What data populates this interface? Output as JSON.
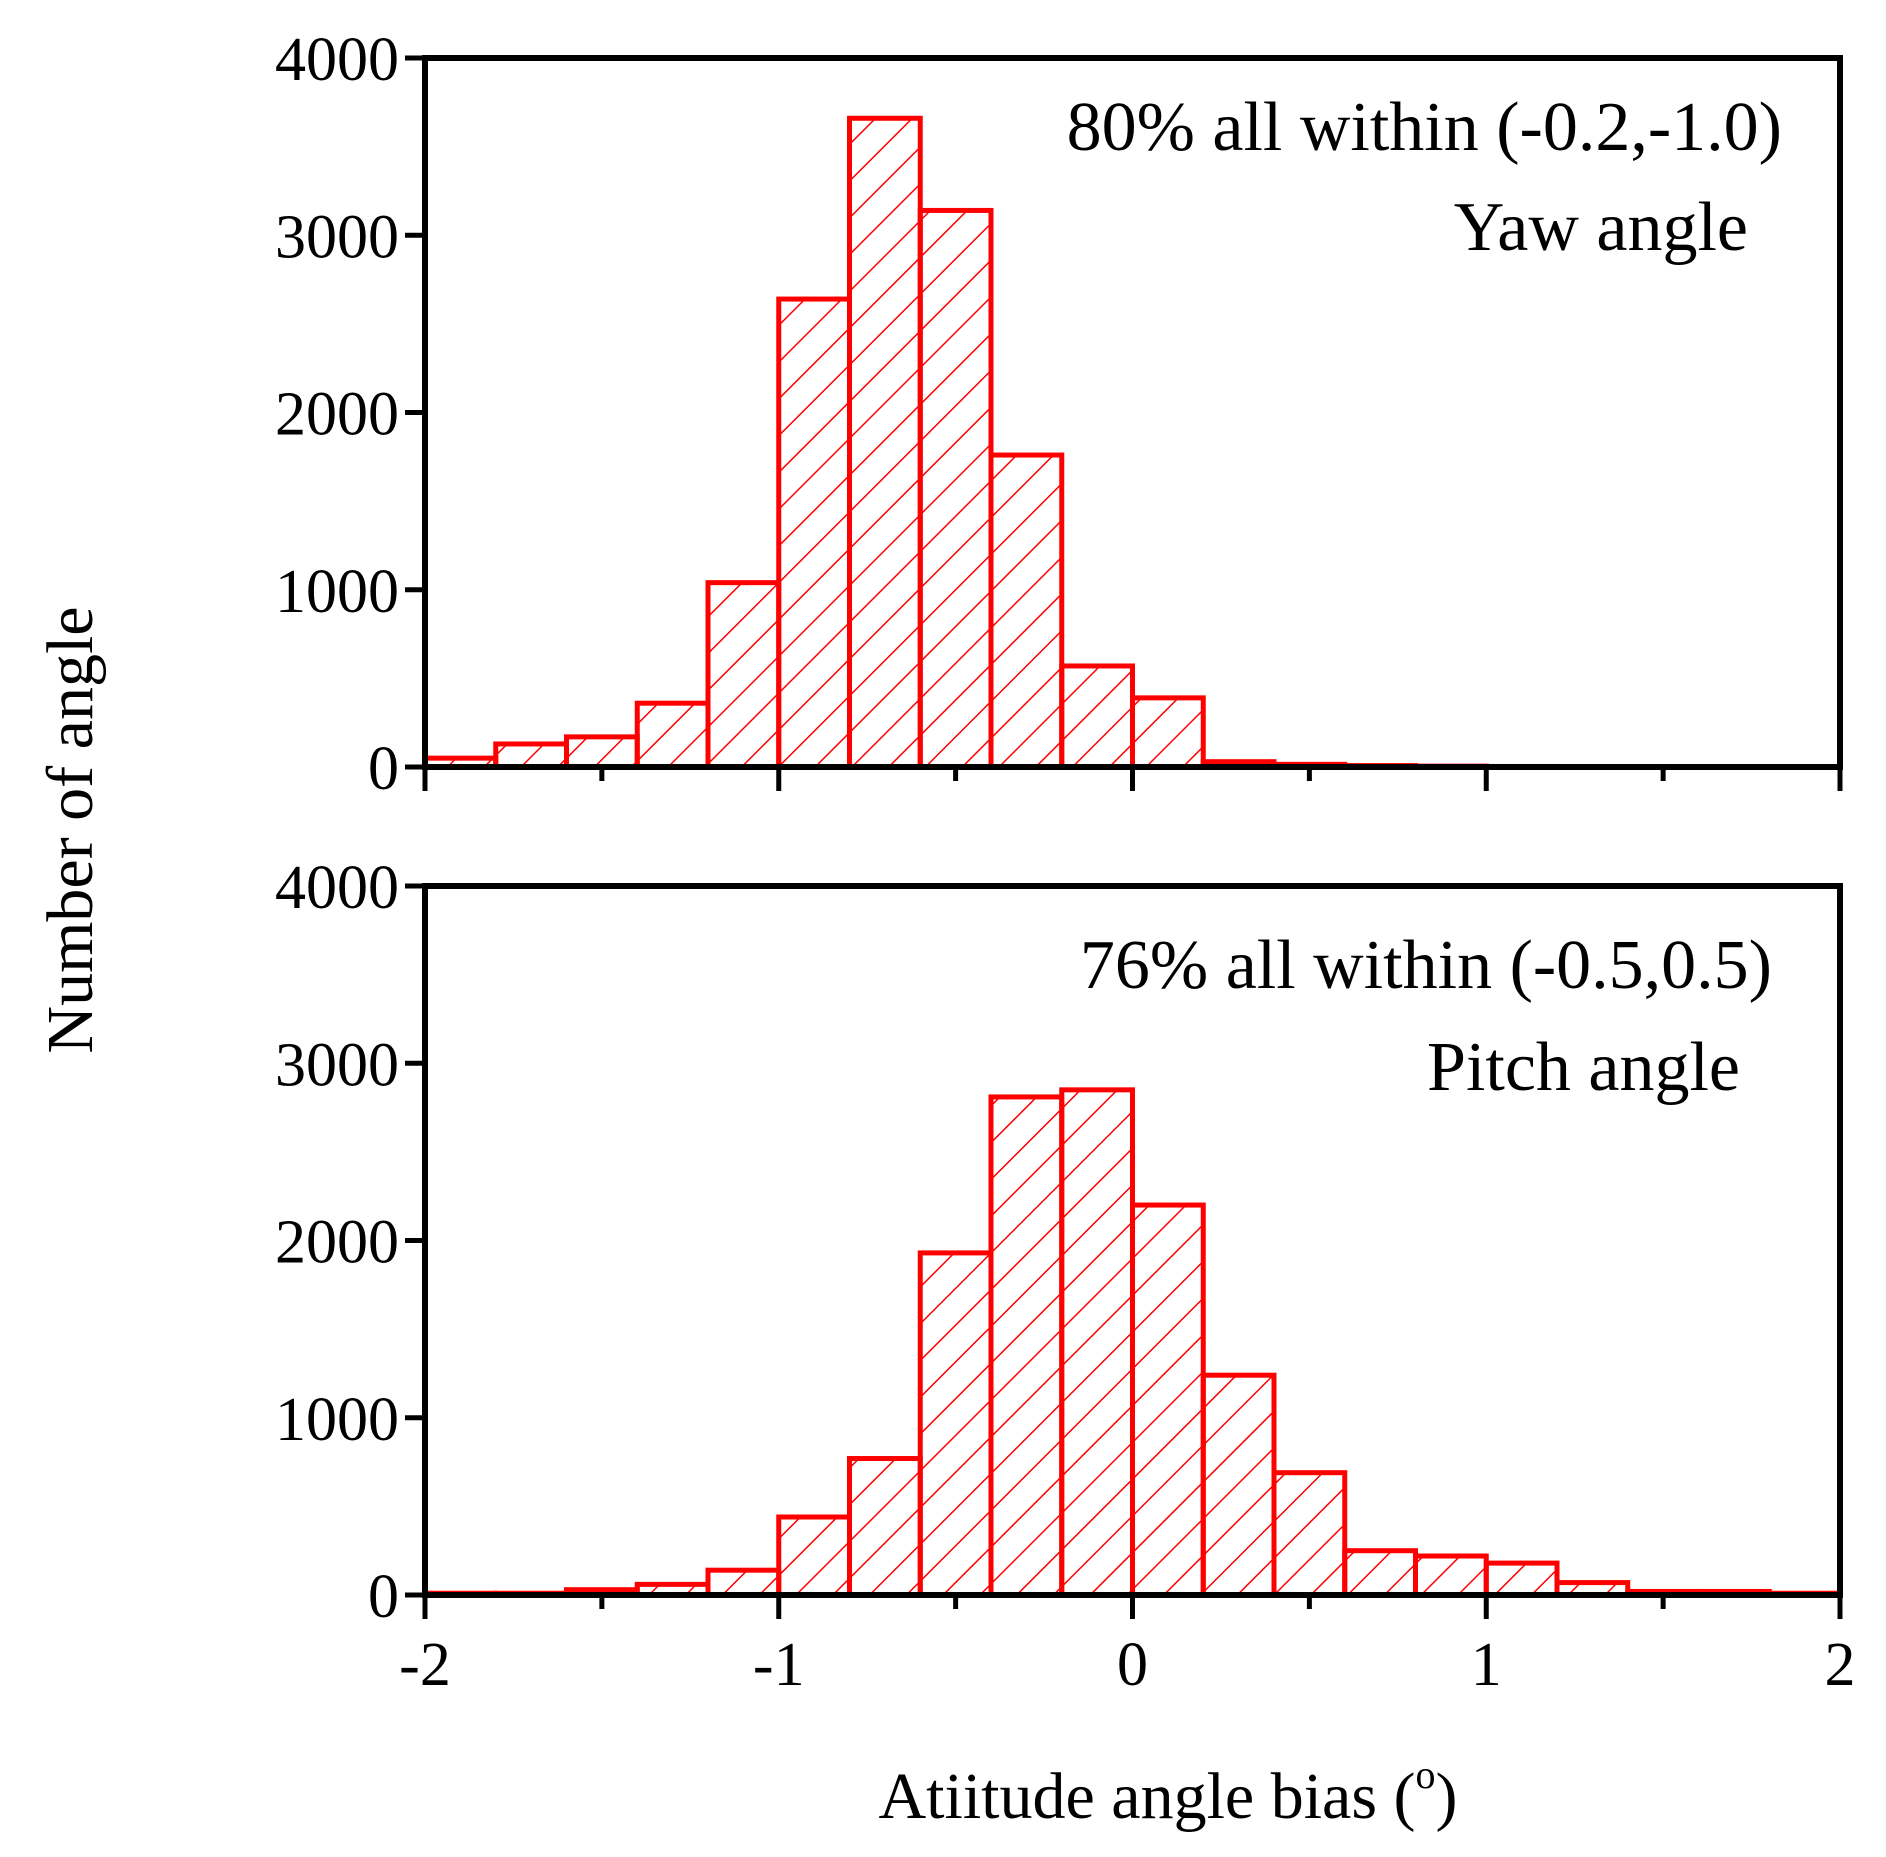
{
  "figure": {
    "ylabel": "Number of angle",
    "xlabel_main": "Atiitude angle bias (",
    "xlabel_sup": "o",
    "xlabel_end": ")"
  },
  "colors": {
    "bars": "#ff0000",
    "axes": "#000000",
    "background": "#ffffff"
  },
  "chart_data": [
    {
      "type": "bar",
      "panel": "top",
      "title": "Yaw angle",
      "annotation": "80% all within (-0.2,-1.0)",
      "bin_width": 0.2,
      "bin_left_edges": [
        -2.0,
        -1.8,
        -1.6,
        -1.4,
        -1.2,
        -1.0,
        -0.8,
        -0.6,
        -0.4,
        -0.2,
        0.0,
        0.2,
        0.4,
        0.6,
        0.8,
        1.0,
        1.2
      ],
      "values": [
        50,
        130,
        170,
        360,
        1040,
        2640,
        3660,
        3140,
        1760,
        570,
        390,
        30,
        15,
        8,
        5,
        3,
        2
      ],
      "xlim": [
        -2,
        2
      ],
      "ylim": [
        0,
        4000
      ],
      "xticks": [
        -2,
        -1,
        0,
        1,
        2
      ],
      "yticks": [
        0,
        1000,
        2000,
        3000,
        4000
      ],
      "ytick_labels": [
        "0",
        "1000",
        "2000",
        "3000",
        "4000"
      ],
      "fill": "diagonal hatch"
    },
    {
      "type": "bar",
      "panel": "bottom",
      "title": "Pitch angle",
      "annotation": "76% all within (-0.5,0.5)",
      "bin_width": 0.2,
      "bin_left_edges": [
        -2.0,
        -1.8,
        -1.6,
        -1.4,
        -1.2,
        -1.0,
        -0.8,
        -0.6,
        -0.4,
        -0.2,
        0.0,
        0.2,
        0.4,
        0.6,
        0.8,
        1.0,
        1.2,
        1.4,
        1.6,
        1.8
      ],
      "values": [
        10,
        10,
        30,
        60,
        140,
        440,
        770,
        1930,
        2810,
        2850,
        2200,
        1240,
        690,
        250,
        220,
        180,
        70,
        20,
        20,
        10
      ],
      "xlim": [
        -2,
        2
      ],
      "ylim": [
        0,
        4000
      ],
      "xticks": [
        -2,
        -1,
        0,
        1,
        2
      ],
      "xtick_labels": [
        "-2",
        "-1",
        "0",
        "1",
        "2"
      ],
      "yticks": [
        0,
        1000,
        2000,
        3000,
        4000
      ],
      "ytick_labels": [
        "0",
        "1000",
        "2000",
        "3000",
        "4000"
      ],
      "fill": "diagonal hatch"
    }
  ]
}
